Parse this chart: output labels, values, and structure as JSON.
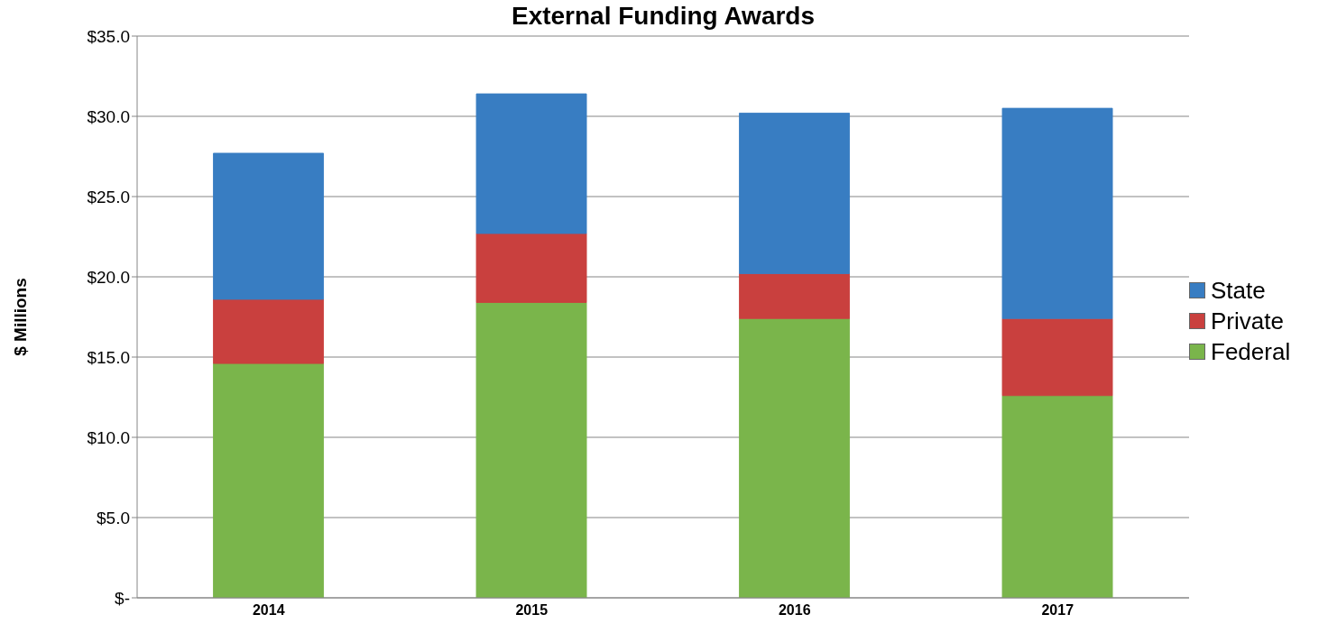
{
  "chart_data": {
    "type": "bar",
    "title": "External Funding Awards",
    "ylabel": "$ Millions",
    "categories": [
      "2014",
      "2015",
      "2016",
      "2017"
    ],
    "series": [
      {
        "name": "Federal",
        "color": "#7ab54b",
        "values": [
          14.6,
          18.4,
          17.4,
          12.6
        ]
      },
      {
        "name": "Private",
        "color": "#c9403e",
        "values": [
          4.0,
          4.3,
          2.8,
          4.8
        ]
      },
      {
        "name": "State",
        "color": "#387dc2",
        "values": [
          9.1,
          8.7,
          10.0,
          13.1
        ]
      }
    ],
    "stacked": true,
    "ylim": [
      0,
      35
    ],
    "yticks": [
      {
        "value": 0,
        "label": "$-"
      },
      {
        "value": 5,
        "label": "$5.0"
      },
      {
        "value": 10,
        "label": "$10.0"
      },
      {
        "value": 15,
        "label": "$15.0"
      },
      {
        "value": 20,
        "label": "$20.0"
      },
      {
        "value": 25,
        "label": "$25.0"
      },
      {
        "value": 30,
        "label": "$30.0"
      },
      {
        "value": 35,
        "label": "$35.0"
      }
    ],
    "grid": "y",
    "legend": "right"
  }
}
